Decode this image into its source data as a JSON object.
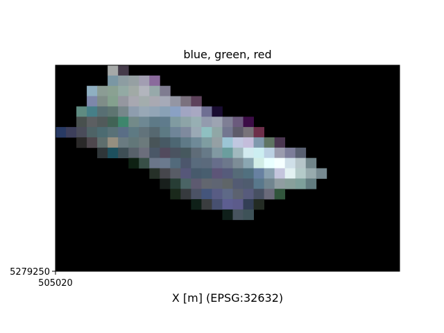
{
  "chart_data": {
    "type": "heatmap",
    "title": "blue, green, red",
    "xlabel": "X [m] (EPSG:32632)",
    "ylabel": "",
    "x_tick_labels": [
      "505020"
    ],
    "y_tick_labels": [
      "5279250"
    ],
    "rows": 20,
    "cols": 33,
    "background": "#000000",
    "pixels": [
      [
        "#000000",
        "#000000",
        "#000000",
        "#000000",
        "#000000",
        "#A6A9A8",
        "#443A49",
        "#000000",
        "#000000",
        "#000000",
        "#000000",
        "#000000",
        "#000000",
        "#000000",
        "#000000",
        "#000000",
        "#000000",
        "#000000",
        "#000000",
        "#000000",
        "#000000",
        "#000000",
        "#000000",
        "#000000",
        "#000000",
        "#000000",
        "#000000",
        "#000000",
        "#000000",
        "#000000",
        "#000000",
        "#000000",
        "#000000"
      ],
      [
        "#000000",
        "#000000",
        "#000000",
        "#000000",
        "#000000",
        "#7A97A4",
        "#8D9DA2",
        "#96A0A3",
        "#A29EB2",
        "#8A6A9C",
        "#000000",
        "#000000",
        "#000000",
        "#000000",
        "#000000",
        "#000000",
        "#000000",
        "#000000",
        "#000000",
        "#000000",
        "#000000",
        "#000000",
        "#000000",
        "#000000",
        "#000000",
        "#000000",
        "#000000",
        "#000000",
        "#000000",
        "#000000",
        "#000000",
        "#000000",
        "#000000"
      ],
      [
        "#000000",
        "#000000",
        "#000000",
        "#8FAFC1",
        "#8B9C94",
        "#8AA192",
        "#93AAA4",
        "#A1AAA6",
        "#B2B5BD",
        "#97A9AA",
        "#7F7C91",
        "#000000",
        "#000000",
        "#000000",
        "#000000",
        "#000000",
        "#000000",
        "#000000",
        "#000000",
        "#000000",
        "#000000",
        "#000000",
        "#000000",
        "#000000",
        "#000000",
        "#000000",
        "#000000",
        "#000000",
        "#000000",
        "#000000",
        "#000000",
        "#000000",
        "#000000"
      ],
      [
        "#000000",
        "#000000",
        "#000000",
        "#7E87AA",
        "#7F8D88",
        "#84A18E",
        "#9597A0",
        "#A8A8B1",
        "#A3ADAD",
        "#A9A9B2",
        "#A6AAB8",
        "#9496A4",
        "#7B717E",
        "#5D415A",
        "#000000",
        "#000000",
        "#000000",
        "#000000",
        "#000000",
        "#000000",
        "#000000",
        "#000000",
        "#000000",
        "#000000",
        "#000000",
        "#000000",
        "#000000",
        "#000000",
        "#000000",
        "#000000",
        "#000000",
        "#000000",
        "#000000"
      ],
      [
        "#000000",
        "#000000",
        "#5F8B81",
        "#467F88",
        "#586F73",
        "#5E7571",
        "#76878A",
        "#8E9DAE",
        "#98A8B6",
        "#92A5B6",
        "#89A1B6",
        "#8AA1C4",
        "#A1A5C2",
        "#A8A8C2",
        "#6F6F93",
        "#190C31",
        "#000000",
        "#000000",
        "#000000",
        "#000000",
        "#000000",
        "#000000",
        "#000000",
        "#000000",
        "#000000",
        "#000000",
        "#000000",
        "#000000",
        "#000000",
        "#000000",
        "#000000",
        "#000000",
        "#000000"
      ],
      [
        "#000000",
        "#000000",
        "#48504E",
        "#5C5F62",
        "#515A5A",
        "#416355",
        "#3E866D",
        "#738A89",
        "#6E8893",
        "#5E7A87",
        "#5F7B8C",
        "#809BA1",
        "#8DA4A7",
        "#97AFB3",
        "#939BAE",
        "#9DA4B2",
        "#7F7F95",
        "#6B5A7D",
        "#3C0C46",
        "#000000",
        "#000000",
        "#000000",
        "#000000",
        "#000000",
        "#000000",
        "#000000",
        "#000000",
        "#000000",
        "#000000",
        "#000000",
        "#000000",
        "#000000",
        "#000000"
      ],
      [
        "#283A64",
        "#3D3F5B",
        "#4A4C5A",
        "#4E6366",
        "#4C6B71",
        "#597177",
        "#5A6E86",
        "#5E7A83",
        "#62737B",
        "#566870",
        "#5D7A84",
        "#6F8598",
        "#7F8A9E",
        "#9AA9B5",
        "#8FC0C1",
        "#90A7A6",
        "#737790",
        "#5E5C6B",
        "#78737A",
        "#6D2F4A",
        "#000000",
        "#000000",
        "#000000",
        "#000000",
        "#000000",
        "#000000",
        "#000000",
        "#000000",
        "#000000",
        "#000000",
        "#000000",
        "#000000",
        "#000000"
      ],
      [
        "#000000",
        "#000000",
        "#2A2929",
        "#4E474D",
        "#5E6E6D",
        "#968F80",
        "#6A7B81",
        "#627779",
        "#6C7A7C",
        "#485458",
        "#475964",
        "#4D6773",
        "#5F7A87",
        "#6F8A98",
        "#7F9DA1",
        "#95A0A4",
        "#9CC5D5",
        "#C0C7E0",
        "#C4BDDB",
        "#7F99AD",
        "#5F7463",
        "#4A3650",
        "#000000",
        "#000000",
        "#000000",
        "#000000",
        "#000000",
        "#000000",
        "#000000",
        "#000000",
        "#000000",
        "#000000",
        "#000000"
      ],
      [
        "#000000",
        "#000000",
        "#000000",
        "#000000",
        "#2F3639",
        "#1D505E",
        "#3E4E55",
        "#58616A",
        "#6C6E7C",
        "#4A5767",
        "#524A5D",
        "#4A5360",
        "#46585E",
        "#5F6C78",
        "#677A88",
        "#8199A2",
        "#6B9E9E",
        "#A1B9BE",
        "#D2EAEF",
        "#CCEEF1",
        "#BCD1E3",
        "#9B9CAE",
        "#7D7E9A",
        "#596071",
        "#000000",
        "#000000",
        "#000000",
        "#000000",
        "#000000",
        "#000000",
        "#000000",
        "#000000",
        "#000000"
      ],
      [
        "#000000",
        "#000000",
        "#000000",
        "#000000",
        "#000000",
        "#000000",
        "#000000",
        "#0E2113",
        "#384F47",
        "#6B7689",
        "#6B7A8E",
        "#526A7B",
        "#4C566C",
        "#596B7D",
        "#5B6A7C",
        "#676E8B",
        "#6D788C",
        "#7D8D97",
        "#8BA7B2",
        "#D2EDE6",
        "#E9FFFF",
        "#F5FFFF",
        "#CFDFE8",
        "#B6C5C9",
        "#71858A",
        "#000000",
        "#000000",
        "#000000",
        "#000000",
        "#000000",
        "#000000",
        "#000000",
        "#000000"
      ],
      [
        "#000000",
        "#000000",
        "#000000",
        "#000000",
        "#000000",
        "#000000",
        "#000000",
        "#000000",
        "#000000",
        "#263028",
        "#46464C",
        "#585C66",
        "#565779",
        "#475A6C",
        "#485E6F",
        "#5D5578",
        "#565B7B",
        "#566B78",
        "#51707F",
        "#6881A1",
        "#8AA1B0",
        "#C4C5DD",
        "#E2F1F2",
        "#B4CAC9",
        "#98ABAE",
        "#778A91",
        "#000000",
        "#000000",
        "#000000",
        "#000000",
        "#000000",
        "#000000",
        "#000000"
      ],
      [
        "#000000",
        "#000000",
        "#000000",
        "#000000",
        "#000000",
        "#000000",
        "#000000",
        "#000000",
        "#000000",
        "#000000",
        "#181F1C",
        "#273D35",
        "#4A6465",
        "#5D5A70",
        "#62666F",
        "#5F6573",
        "#5F6568",
        "#535B73",
        "#4F5C6F",
        "#59788C",
        "#71858F",
        "#909DA1",
        "#88A09B",
        "#7EA09B",
        "#627C80",
        "#000000",
        "#000000",
        "#000000",
        "#000000",
        "#000000",
        "#000000",
        "#000000",
        "#000000"
      ],
      [
        "#000000",
        "#000000",
        "#000000",
        "#000000",
        "#000000",
        "#000000",
        "#000000",
        "#000000",
        "#000000",
        "#000000",
        "#000000",
        "#1A291B",
        "#363A3E",
        "#4B5265",
        "#44557B",
        "#585C84",
        "#5E6987",
        "#5C6270",
        "#575B7C",
        "#475062",
        "#6A6A7A",
        "#31553C",
        "#000000",
        "#000000",
        "#000000",
        "#000000",
        "#000000",
        "#000000",
        "#000000",
        "#000000",
        "#000000",
        "#000000",
        "#000000"
      ],
      [
        "#000000",
        "#000000",
        "#000000",
        "#000000",
        "#000000",
        "#000000",
        "#000000",
        "#000000",
        "#000000",
        "#000000",
        "#000000",
        "#000000",
        "#000000",
        "#0F2018",
        "#3A3D3F",
        "#475070",
        "#5D5E91",
        "#5C5B8B",
        "#333F56",
        "#232B23",
        "#000000",
        "#000000",
        "#000000",
        "#000000",
        "#000000",
        "#000000",
        "#000000",
        "#000000",
        "#000000",
        "#000000",
        "#000000",
        "#000000",
        "#000000"
      ],
      [
        "#000000",
        "#000000",
        "#000000",
        "#000000",
        "#000000",
        "#000000",
        "#000000",
        "#000000",
        "#000000",
        "#000000",
        "#000000",
        "#000000",
        "#000000",
        "#000000",
        "#000000",
        "#000000",
        "#0F1F1A",
        "#47545F",
        "#3E5258",
        "#000000",
        "#000000",
        "#000000",
        "#000000",
        "#000000",
        "#000000",
        "#000000",
        "#000000",
        "#000000",
        "#000000",
        "#000000",
        "#000000",
        "#000000",
        "#000000"
      ],
      [
        "#000000",
        "#000000",
        "#000000",
        "#000000",
        "#000000",
        "#000000",
        "#000000",
        "#000000",
        "#000000",
        "#000000",
        "#000000",
        "#000000",
        "#000000",
        "#000000",
        "#000000",
        "#000000",
        "#000000",
        "#000000",
        "#000000",
        "#000000",
        "#000000",
        "#000000",
        "#000000",
        "#000000",
        "#000000",
        "#000000",
        "#000000",
        "#000000",
        "#000000",
        "#000000",
        "#000000",
        "#000000",
        "#000000"
      ],
      [
        "#000000",
        "#000000",
        "#000000",
        "#000000",
        "#000000",
        "#000000",
        "#000000",
        "#000000",
        "#000000",
        "#000000",
        "#000000",
        "#000000",
        "#000000",
        "#000000",
        "#000000",
        "#000000",
        "#000000",
        "#000000",
        "#000000",
        "#000000",
        "#000000",
        "#000000",
        "#000000",
        "#000000",
        "#000000",
        "#000000",
        "#000000",
        "#000000",
        "#000000",
        "#000000",
        "#000000",
        "#000000",
        "#000000"
      ],
      [
        "#000000",
        "#000000",
        "#000000",
        "#000000",
        "#000000",
        "#000000",
        "#000000",
        "#000000",
        "#000000",
        "#000000",
        "#000000",
        "#000000",
        "#000000",
        "#000000",
        "#000000",
        "#000000",
        "#000000",
        "#000000",
        "#000000",
        "#000000",
        "#000000",
        "#000000",
        "#000000",
        "#000000",
        "#000000",
        "#000000",
        "#000000",
        "#000000",
        "#000000",
        "#000000",
        "#000000",
        "#000000",
        "#000000"
      ],
      [
        "#000000",
        "#000000",
        "#000000",
        "#000000",
        "#000000",
        "#000000",
        "#000000",
        "#000000",
        "#000000",
        "#000000",
        "#000000",
        "#000000",
        "#000000",
        "#000000",
        "#000000",
        "#000000",
        "#000000",
        "#000000",
        "#000000",
        "#000000",
        "#000000",
        "#000000",
        "#000000",
        "#000000",
        "#000000",
        "#000000",
        "#000000",
        "#000000",
        "#000000",
        "#000000",
        "#000000",
        "#000000",
        "#000000"
      ],
      [
        "#000000",
        "#000000",
        "#000000",
        "#000000",
        "#000000",
        "#000000",
        "#000000",
        "#000000",
        "#000000",
        "#000000",
        "#000000",
        "#000000",
        "#000000",
        "#000000",
        "#000000",
        "#000000",
        "#000000",
        "#000000",
        "#000000",
        "#000000",
        "#000000",
        "#000000",
        "#000000",
        "#000000",
        "#000000",
        "#000000",
        "#000000",
        "#000000",
        "#000000",
        "#000000",
        "#000000",
        "#000000",
        "#000000"
      ]
    ]
  }
}
